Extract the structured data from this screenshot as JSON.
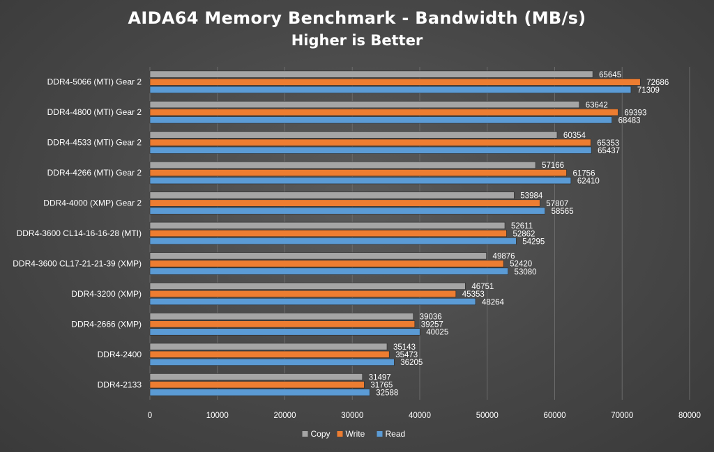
{
  "chart_data": {
    "type": "bar",
    "orientation": "horizontal",
    "title": "AIDA64 Memory Benchmark - Bandwidth (MB/s)",
    "subtitle": "Higher is Better",
    "categories": [
      "DDR4-5066 (MTI) Gear 2",
      "DDR4-4800 (MTI) Gear 2",
      "DDR4-4533 (MTI) Gear 2",
      "DDR4-4266 (MTI) Gear 2",
      "DDR4-4000 (XMP) Gear 2",
      "DDR4-3600 CL14-16-16-28 (MTI)",
      "DDR4-3600 CL17-21-21-39 (XMP)",
      "DDR4-3200 (XMP)",
      "DDR4-2666 (XMP)",
      "DDR4-2400",
      "DDR4-2133"
    ],
    "series": [
      {
        "name": "Copy",
        "color": "#a5a5a5",
        "values": [
          65645,
          63642,
          60354,
          57166,
          53984,
          52611,
          49876,
          46751,
          39036,
          35143,
          31497
        ]
      },
      {
        "name": "Write",
        "color": "#ed7d31",
        "values": [
          72686,
          69393,
          65353,
          61756,
          57807,
          52862,
          52420,
          45353,
          39257,
          35473,
          31765
        ]
      },
      {
        "name": "Read",
        "color": "#5b9bd5",
        "values": [
          71309,
          68483,
          65437,
          62410,
          58565,
          54295,
          53080,
          48264,
          40025,
          36205,
          32588
        ]
      }
    ],
    "xlim": [
      0,
      80000
    ],
    "xticks": [
      0,
      10000,
      20000,
      30000,
      40000,
      50000,
      60000,
      70000,
      80000
    ],
    "xlabel": "",
    "ylabel": "",
    "grid": true,
    "legend": "bottom"
  }
}
